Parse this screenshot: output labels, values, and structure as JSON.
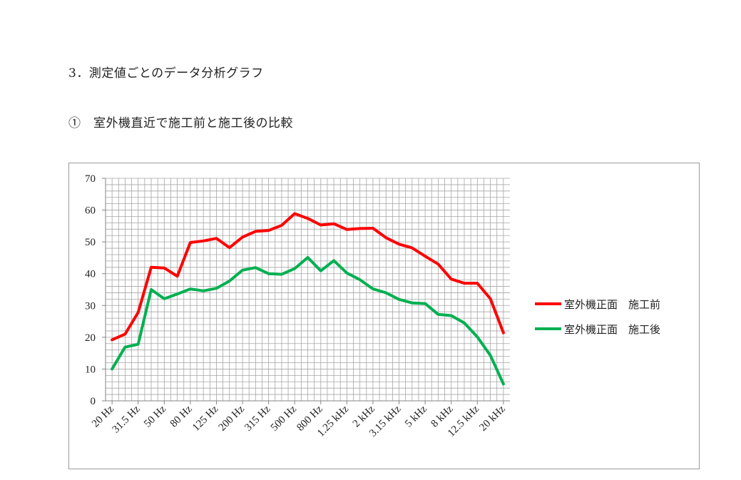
{
  "document": {
    "section_title": "3．測定値ごとのデータ分析グラフ",
    "subsection_title": "①　室外機直近で施工前と施工後の比較"
  },
  "chart_data": {
    "type": "line",
    "title": "",
    "xlabel": "",
    "ylabel": "",
    "ylim": [
      0,
      70
    ],
    "yticks": [
      0,
      10,
      20,
      30,
      40,
      50,
      60,
      70
    ],
    "grid": true,
    "legend_position": "right",
    "categories": [
      "20 Hz",
      "25 Hz",
      "31.5 Hz",
      "40 Hz",
      "50 Hz",
      "63 Hz",
      "80 Hz",
      "100 Hz",
      "125 Hz",
      "160 Hz",
      "200 Hz",
      "250 Hz",
      "315 Hz",
      "400 Hz",
      "500 Hz",
      "630 Hz",
      "800 Hz",
      "1 kHz",
      "1.25 kHz",
      "1.6 kHz",
      "2 kHz",
      "2.5 kHz",
      "3.15 kHz",
      "4 kHz",
      "5 kHz",
      "6.3 kHz",
      "8 kHz",
      "10 kHz",
      "12.5 kHz",
      "16 kHz",
      "20 kHz"
    ],
    "visible_tick_labels": [
      "20 Hz",
      "31.5 Hz",
      "50 Hz",
      "80 Hz",
      "125 Hz",
      "200 Hz",
      "315 Hz",
      "500 Hz",
      "800 Hz",
      "1.25 kHz",
      "2 kHz",
      "3.15 kHz",
      "5 kHz",
      "8 kHz",
      "12.5 kHz",
      "20 kHz"
    ],
    "series": [
      {
        "name": "室外機正面　施工前",
        "color": "#ff0000",
        "values": [
          19.2,
          21.0,
          27.8,
          42.0,
          41.8,
          39.2,
          49.8,
          50.3,
          51.1,
          48.2,
          51.5,
          53.3,
          53.6,
          55.2,
          58.9,
          57.4,
          55.3,
          55.7,
          53.9,
          54.2,
          54.3,
          51.3,
          49.3,
          48.1,
          45.5,
          43.0,
          38.3,
          37.0,
          37.0,
          32.1,
          21.4
        ]
      },
      {
        "name": "室外機正面　施工後",
        "color": "#00b050",
        "values": [
          10.0,
          16.9,
          17.8,
          35.0,
          32.1,
          33.6,
          35.2,
          34.6,
          35.4,
          37.7,
          41.1,
          41.9,
          40.0,
          39.8,
          41.6,
          45.1,
          40.9,
          44.1,
          40.2,
          38.1,
          35.2,
          34.0,
          31.9,
          30.8,
          30.6,
          27.2,
          26.8,
          24.5,
          20.1,
          14.3,
          5.3
        ]
      }
    ]
  }
}
